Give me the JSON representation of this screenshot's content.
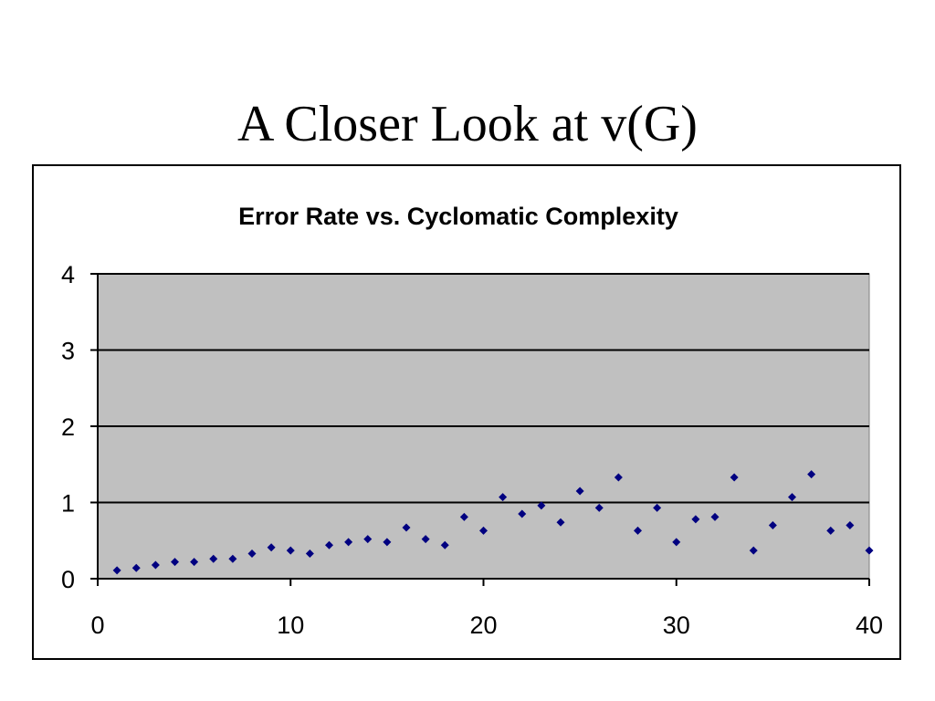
{
  "slide": {
    "title": "A Closer Look at v(G)"
  },
  "chart_data": {
    "type": "scatter",
    "title": "Error Rate vs. Cyclomatic Complexity",
    "xlabel": "",
    "ylabel": "",
    "xlim": [
      0,
      40
    ],
    "ylim": [
      0,
      4
    ],
    "x_ticks": [
      0,
      10,
      20,
      30,
      40
    ],
    "y_ticks": [
      0,
      1,
      2,
      3,
      4
    ],
    "grid": "horizontal major gridlines",
    "legend": "none",
    "series": [
      {
        "x": [
          1,
          2,
          3,
          4,
          5,
          6,
          7,
          8,
          9,
          10,
          11,
          12,
          13,
          14,
          15,
          16,
          17,
          18,
          19,
          20,
          21,
          22,
          23,
          24,
          25,
          26,
          27,
          28,
          29,
          30,
          31,
          32,
          33,
          34,
          35,
          36,
          37,
          38,
          39,
          40
        ],
        "y": [
          0.11,
          0.14,
          0.18,
          0.22,
          0.22,
          0.26,
          0.26,
          0.33,
          0.41,
          0.37,
          0.33,
          0.44,
          0.48,
          0.52,
          0.48,
          0.67,
          0.52,
          0.44,
          0.81,
          0.63,
          1.07,
          0.85,
          0.96,
          0.74,
          1.15,
          0.93,
          1.33,
          0.63,
          0.93,
          0.48,
          0.78,
          0.81,
          1.33,
          0.37,
          0.7,
          1.07,
          1.37,
          0.63,
          0.7,
          0.37
        ]
      }
    ]
  },
  "colors": {
    "plot_area": "#c0c0c0",
    "marker": "#000080",
    "gridline": "#000000",
    "axis": "#000000"
  }
}
